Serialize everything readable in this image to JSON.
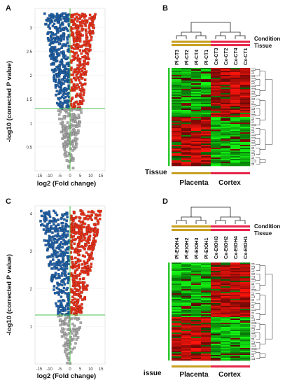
{
  "panels": {
    "A": {
      "label": "A"
    },
    "B": {
      "label": "B"
    },
    "C": {
      "label": "C"
    },
    "D": {
      "label": "D"
    }
  },
  "colors": {
    "up": "#e8311a",
    "down": "#1f5fa5",
    "ns": "#a8a8a8",
    "threshold": "#4ec04e",
    "high": "#ff2a1a",
    "low": "#1ad21a",
    "placenta": "#c8a020",
    "cortex": "#e8254a"
  },
  "chart_data": [
    {
      "type": "scatter",
      "panel": "A",
      "xlabel": "log2 (Fold change)",
      "ylabel": "-log10 (corrected P value)",
      "x_ticks": [
        "-15",
        "-10",
        "-5",
        "0",
        "5",
        "10",
        "15"
      ],
      "y_ticks": [
        "0.5",
        "1",
        "1.5",
        "2",
        "2.5",
        "3"
      ],
      "xlim": [
        -17,
        17
      ],
      "ylim": [
        0,
        3.4
      ],
      "threshold_y": 1.3,
      "threshold_x": 0,
      "series": []
    },
    {
      "type": "heatmap",
      "panel": "B",
      "legend": [
        "Condition",
        "Tissue"
      ],
      "columns": [
        "Pl-CT3",
        "Pl-CT2",
        "Pl-CT4",
        "Pl-CT1",
        "Cx-CT3",
        "Cx-CT2",
        "Cx-CT4",
        "Cx-CT1"
      ],
      "tissue_label": "Tissue",
      "groups": [
        "Placenta",
        "Cortex"
      ]
    },
    {
      "type": "scatter",
      "panel": "C",
      "xlabel": "log2 (Fold change)",
      "ylabel": "-log10 (corrected P value)",
      "x_ticks": [
        "-15",
        "-10",
        "-5",
        "0",
        "5",
        "10",
        "15"
      ],
      "y_ticks": [
        "1",
        "2",
        "3",
        "4"
      ],
      "xlim": [
        -17,
        17
      ],
      "ylim": [
        0,
        4.2
      ],
      "threshold_y": 1.3,
      "threshold_x": 0,
      "series": []
    },
    {
      "type": "heatmap",
      "panel": "D",
      "legend": [
        "Condition",
        "Tissue"
      ],
      "columns": [
        "Pl-EtOH4",
        "Pl-EtOH2",
        "Pl-EtOH3",
        "Pl-EtOH1",
        "Cx-EtOH3",
        "Cx-EtOH2",
        "Cx-EtOH4",
        "Cx-EtOH1"
      ],
      "tissue_label": "Tissue",
      "groups": [
        "Placenta",
        "Cortex"
      ]
    }
  ]
}
